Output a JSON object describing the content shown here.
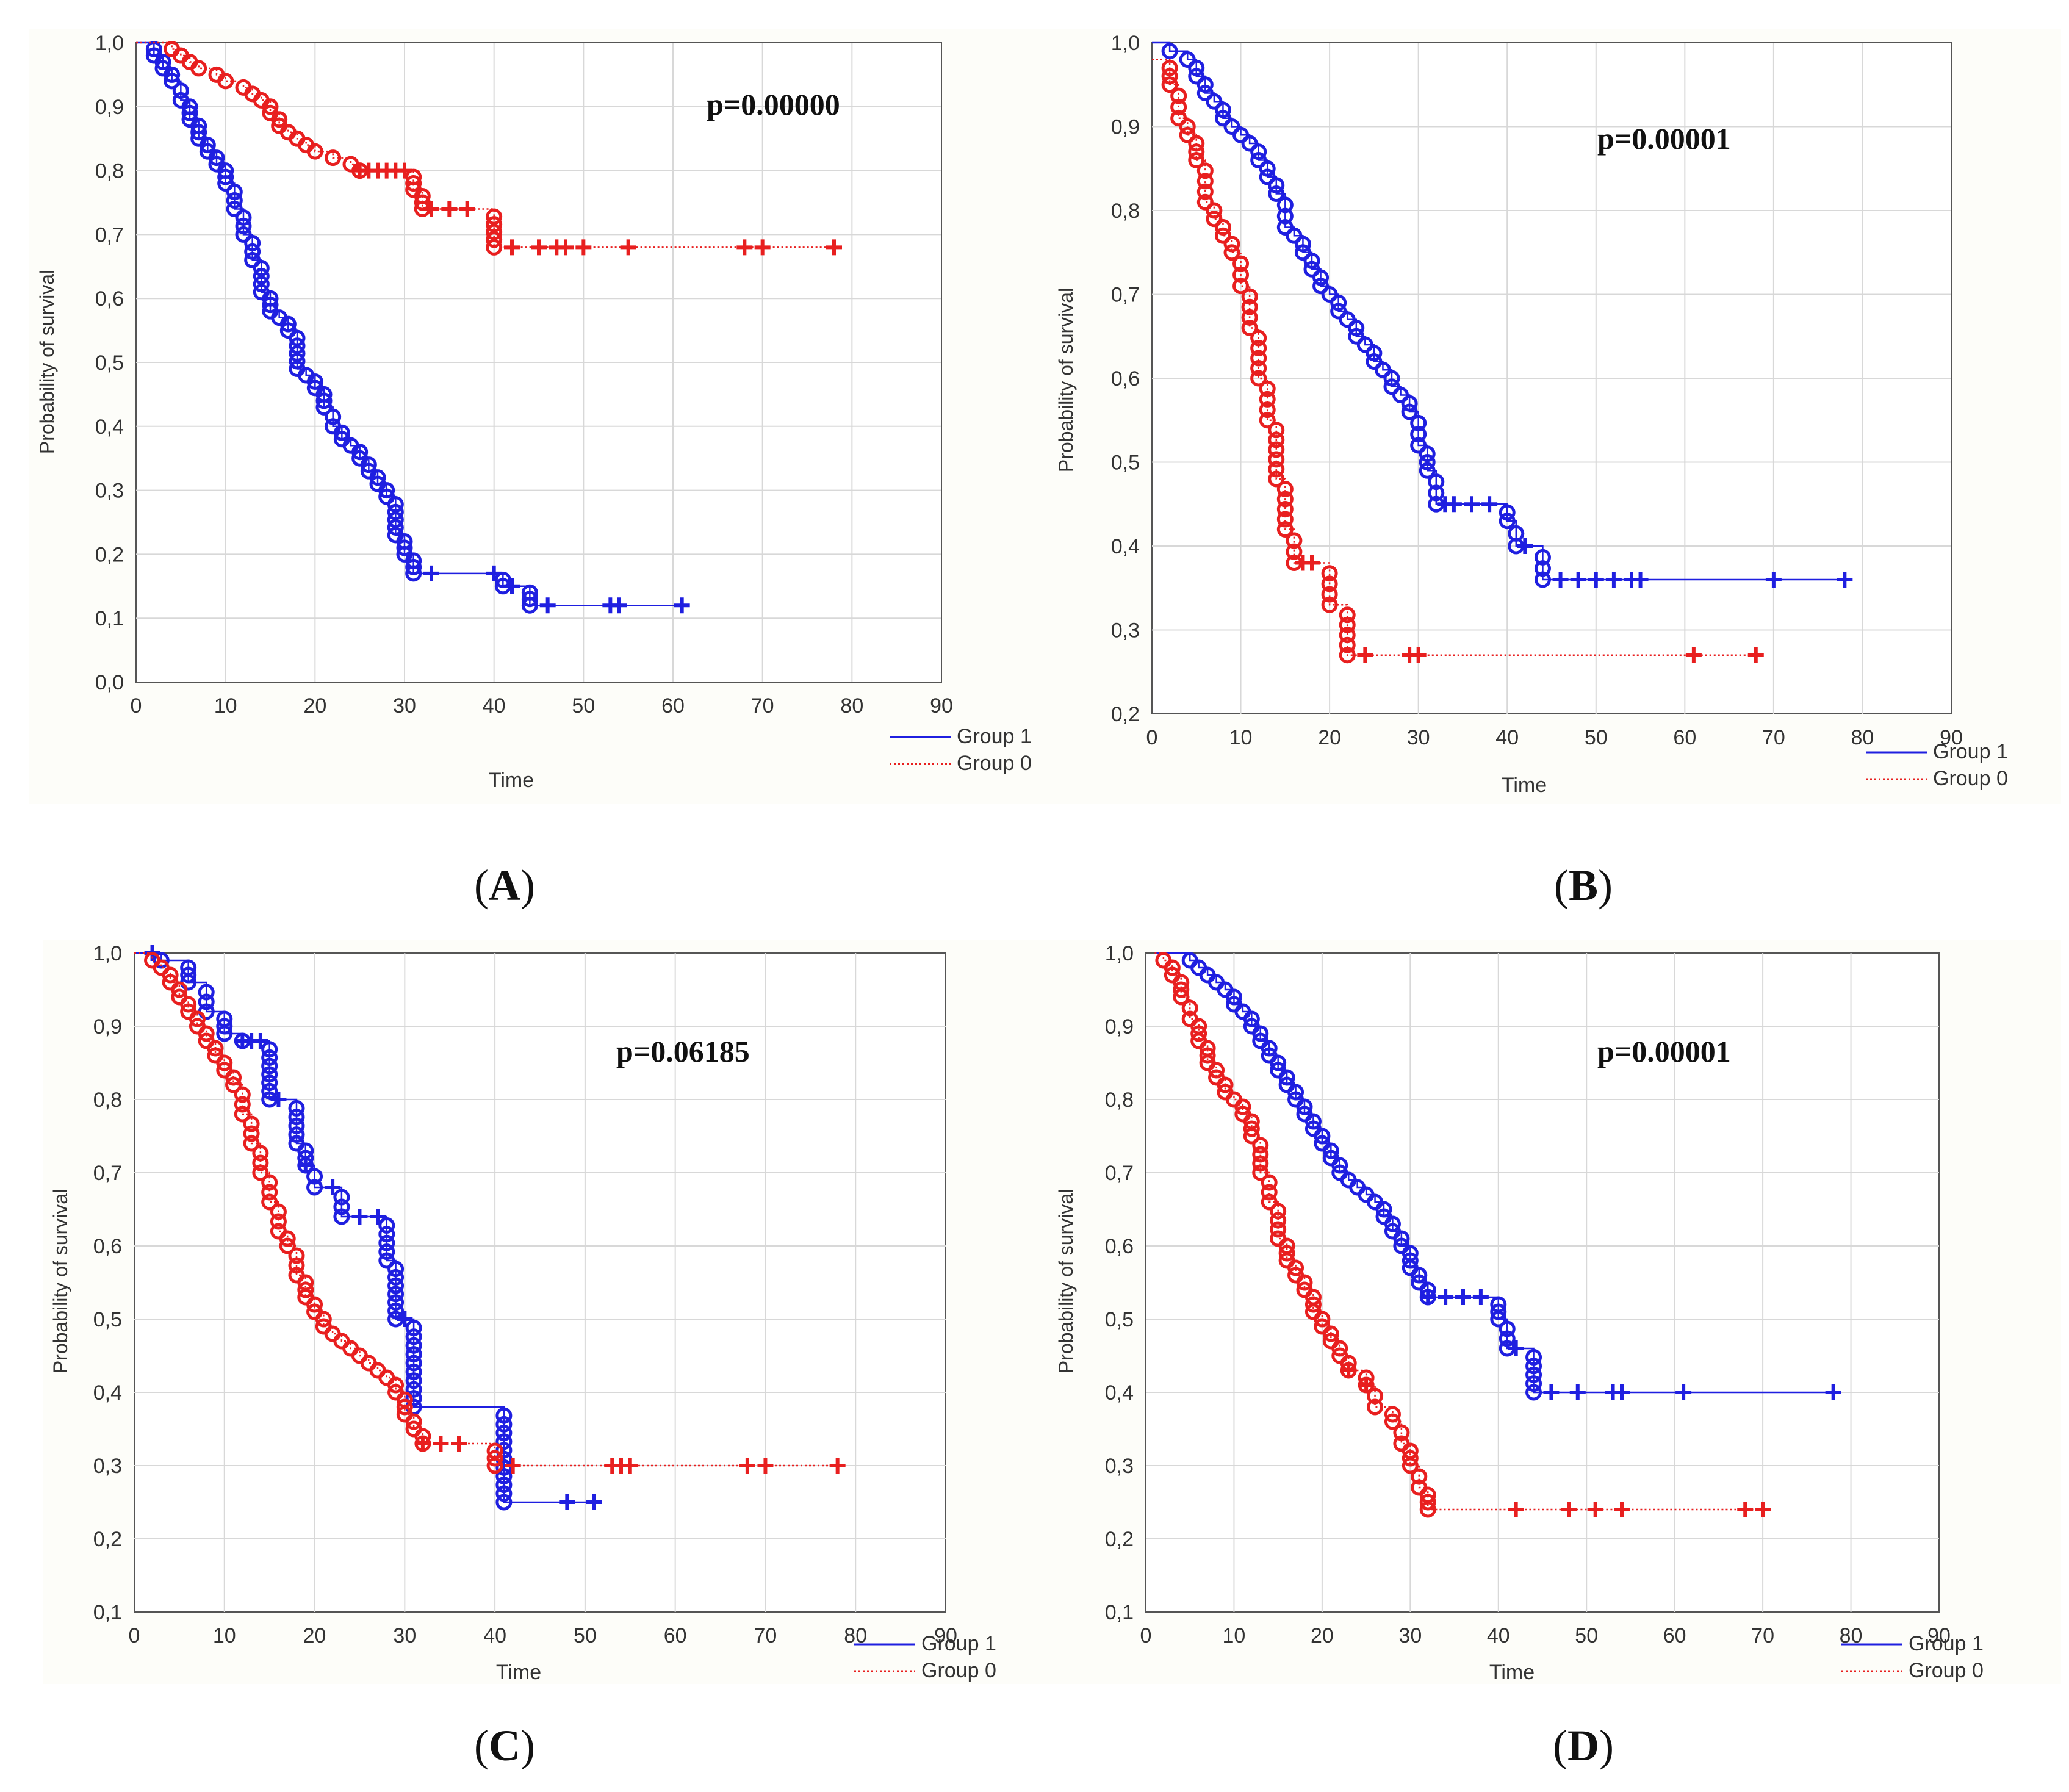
{
  "colors": {
    "group1": "#1f1fe0",
    "group0": "#e81f1f",
    "axis": "#222222",
    "grid": "#d8d8d8",
    "frame": "#555555"
  },
  "chart_data": [
    {
      "type": "line",
      "panel_label": "A",
      "title": "",
      "p_value_text": "p=0.00000",
      "xlabel": "Time",
      "ylabel": "Probability of survival",
      "xlim": [
        0,
        90
      ],
      "ylim": [
        0.0,
        1.0
      ],
      "xticks": [
        "0",
        "10",
        "20",
        "30",
        "40",
        "50",
        "60",
        "70",
        "80",
        "90"
      ],
      "yticks": [
        "0,0",
        "0,1",
        "0,2",
        "0,3",
        "0,4",
        "0,5",
        "0,6",
        "0,7",
        "0,8",
        "0,9",
        "1,0"
      ],
      "legend": [
        "Group 1",
        "Group 0"
      ],
      "series": [
        {
          "name": "Group 1",
          "style": "solid",
          "x": [
            0,
            2,
            3,
            4,
            5,
            6,
            7,
            8,
            9,
            10,
            11,
            12,
            13,
            14,
            15,
            16,
            17,
            18,
            19,
            20,
            21,
            22,
            23,
            24,
            25,
            26,
            27,
            28,
            29,
            30,
            31,
            33,
            40,
            41,
            42,
            44,
            46,
            53,
            54,
            61
          ],
          "values": [
            1.0,
            0.98,
            0.96,
            0.94,
            0.91,
            0.88,
            0.85,
            0.83,
            0.81,
            0.78,
            0.74,
            0.7,
            0.66,
            0.61,
            0.58,
            0.57,
            0.55,
            0.49,
            0.48,
            0.46,
            0.43,
            0.4,
            0.38,
            0.37,
            0.35,
            0.33,
            0.31,
            0.29,
            0.23,
            0.2,
            0.17,
            0.17,
            0.17,
            0.15,
            0.15,
            0.12,
            0.12,
            0.12,
            0.12,
            0.12
          ],
          "censored": [
            33,
            40,
            42,
            46,
            53,
            54,
            61
          ]
        },
        {
          "name": "Group 0",
          "style": "dotted",
          "x": [
            0,
            2,
            3,
            4,
            5,
            6,
            7,
            8,
            9,
            10,
            11,
            12,
            13,
            14,
            15,
            16,
            17,
            18,
            19,
            20,
            22,
            24,
            25,
            26,
            27,
            28,
            29,
            30,
            31,
            32,
            33,
            35,
            37,
            40,
            42,
            45,
            47,
            48,
            50,
            55,
            68,
            70,
            78
          ],
          "values": [
            1.0,
            1.0,
            1.0,
            0.99,
            0.98,
            0.97,
            0.96,
            0.96,
            0.95,
            0.94,
            0.94,
            0.93,
            0.92,
            0.91,
            0.89,
            0.87,
            0.86,
            0.85,
            0.84,
            0.83,
            0.82,
            0.81,
            0.8,
            0.8,
            0.8,
            0.8,
            0.8,
            0.8,
            0.77,
            0.74,
            0.74,
            0.74,
            0.74,
            0.68,
            0.68,
            0.68,
            0.68,
            0.68,
            0.68,
            0.68,
            0.68,
            0.68,
            0.68
          ],
          "censored": [
            25,
            26,
            27,
            28,
            29,
            30,
            33,
            35,
            37,
            42,
            45,
            47,
            48,
            50,
            55,
            68,
            70,
            78
          ]
        }
      ]
    },
    {
      "type": "line",
      "panel_label": "B",
      "title": "",
      "p_value_text": "p=0.00001",
      "xlabel": "Time",
      "ylabel": "Probability of survival",
      "xlim": [
        0,
        90
      ],
      "ylim": [
        0.2,
        1.0
      ],
      "xticks": [
        "0",
        "10",
        "20",
        "30",
        "40",
        "50",
        "60",
        "70",
        "80",
        "90"
      ],
      "yticks": [
        "0,2",
        "0,3",
        "0,4",
        "0,5",
        "0,6",
        "0,7",
        "0,8",
        "0,9",
        "1,0"
      ],
      "legend": [
        "Group 1",
        "Group 0"
      ],
      "series": [
        {
          "name": "Group 1",
          "style": "solid",
          "x": [
            0,
            2,
            4,
            5,
            6,
            7,
            8,
            9,
            10,
            11,
            12,
            13,
            14,
            15,
            16,
            17,
            18,
            19,
            20,
            21,
            22,
            23,
            24,
            25,
            26,
            27,
            28,
            29,
            30,
            31,
            32,
            33,
            36,
            38,
            40,
            41,
            42,
            44,
            46,
            48,
            50,
            52,
            54,
            55,
            70,
            78
          ],
          "values": [
            1.0,
            0.99,
            0.98,
            0.96,
            0.94,
            0.93,
            0.91,
            0.9,
            0.89,
            0.88,
            0.86,
            0.84,
            0.82,
            0.78,
            0.77,
            0.75,
            0.73,
            0.71,
            0.7,
            0.68,
            0.67,
            0.65,
            0.64,
            0.62,
            0.61,
            0.59,
            0.58,
            0.56,
            0.52,
            0.49,
            0.45,
            0.45,
            0.45,
            0.45,
            0.43,
            0.4,
            0.4,
            0.36,
            0.36,
            0.36,
            0.36,
            0.36,
            0.36,
            0.36,
            0.36,
            0.36
          ],
          "censored": [
            33,
            34,
            36,
            38,
            42,
            46,
            48,
            50,
            52,
            54,
            55,
            70,
            78
          ]
        },
        {
          "name": "Group 0",
          "style": "dotted",
          "x": [
            0,
            1,
            2,
            3,
            4,
            5,
            6,
            7,
            8,
            9,
            10,
            11,
            12,
            13,
            14,
            15,
            16,
            18,
            20,
            22,
            24,
            29,
            30,
            61,
            68
          ],
          "values": [
            0.98,
            0.98,
            0.95,
            0.91,
            0.89,
            0.86,
            0.81,
            0.79,
            0.77,
            0.75,
            0.71,
            0.66,
            0.6,
            0.55,
            0.48,
            0.42,
            0.38,
            0.38,
            0.33,
            0.27,
            0.27,
            0.27,
            0.27,
            0.27,
            0.27
          ],
          "censored": [
            17,
            18,
            24,
            29,
            30,
            61,
            68
          ]
        }
      ]
    },
    {
      "type": "line",
      "panel_label": "C",
      "title": "",
      "p_value_text": "p=0.06185",
      "xlabel": "Time",
      "ylabel": "Probability of survival",
      "xlim": [
        0,
        90
      ],
      "ylim": [
        0.1,
        1.0
      ],
      "xticks": [
        "0",
        "10",
        "20",
        "30",
        "40",
        "50",
        "60",
        "70",
        "80",
        "90"
      ],
      "yticks": [
        "0,1",
        "0,2",
        "0,3",
        "0,4",
        "0,5",
        "0,6",
        "0,7",
        "0,8",
        "0,9",
        "1,0"
      ],
      "legend": [
        "Group 1",
        "Group 0"
      ],
      "series": [
        {
          "name": "Group 1",
          "style": "solid",
          "x": [
            0,
            3,
            6,
            8,
            10,
            12,
            13,
            14,
            15,
            18,
            19,
            20,
            22,
            23,
            25,
            27,
            28,
            29,
            30,
            31,
            41,
            48,
            51
          ],
          "values": [
            1.0,
            0.99,
            0.96,
            0.92,
            0.89,
            0.88,
            0.88,
            0.88,
            0.8,
            0.74,
            0.71,
            0.68,
            0.68,
            0.64,
            0.64,
            0.64,
            0.58,
            0.5,
            0.5,
            0.38,
            0.25,
            0.25,
            0.25
          ],
          "censored": [
            2,
            12,
            13,
            14,
            16,
            19,
            22,
            25,
            27,
            30,
            48,
            51
          ]
        },
        {
          "name": "Group 0",
          "style": "dotted",
          "x": [
            0,
            2,
            3,
            4,
            5,
            6,
            7,
            8,
            9,
            10,
            11,
            12,
            13,
            14,
            15,
            16,
            17,
            18,
            19,
            20,
            21,
            22,
            23,
            24,
            25,
            26,
            27,
            28,
            29,
            30,
            31,
            32,
            34,
            36,
            40,
            42,
            53,
            54,
            55,
            68,
            70,
            78
          ],
          "values": [
            1.0,
            0.99,
            0.98,
            0.96,
            0.94,
            0.92,
            0.9,
            0.88,
            0.86,
            0.84,
            0.82,
            0.78,
            0.74,
            0.7,
            0.66,
            0.62,
            0.6,
            0.56,
            0.53,
            0.51,
            0.49,
            0.48,
            0.47,
            0.46,
            0.45,
            0.44,
            0.43,
            0.42,
            0.4,
            0.37,
            0.35,
            0.33,
            0.33,
            0.33,
            0.3,
            0.3,
            0.3,
            0.3,
            0.3,
            0.3,
            0.3,
            0.3
          ],
          "censored": [
            32,
            34,
            36,
            42,
            53,
            54,
            55,
            68,
            70,
            78
          ]
        }
      ]
    },
    {
      "type": "line",
      "panel_label": "D",
      "title": "",
      "p_value_text": "p=0.00001",
      "xlabel": "Time",
      "ylabel": "Probability of survival",
      "xlim": [
        0,
        90
      ],
      "ylim": [
        0.1,
        1.0
      ],
      "xticks": [
        "0",
        "10",
        "20",
        "30",
        "40",
        "50",
        "60",
        "70",
        "80",
        "90"
      ],
      "yticks": [
        "0,1",
        "0,2",
        "0,3",
        "0,4",
        "0,5",
        "0,6",
        "0,7",
        "0,8",
        "0,9",
        "1,0"
      ],
      "legend": [
        "Group 1",
        "Group 0"
      ],
      "series": [
        {
          "name": "Group 1",
          "style": "solid",
          "x": [
            1,
            3,
            5,
            6,
            7,
            8,
            9,
            10,
            11,
            12,
            13,
            14,
            15,
            16,
            17,
            18,
            19,
            20,
            21,
            22,
            23,
            24,
            25,
            26,
            27,
            28,
            29,
            30,
            31,
            32,
            34,
            36,
            38,
            40,
            41,
            42,
            44,
            46,
            49,
            53,
            54,
            61,
            78
          ],
          "values": [
            1.0,
            1.0,
            0.99,
            0.98,
            0.97,
            0.96,
            0.95,
            0.93,
            0.92,
            0.9,
            0.88,
            0.86,
            0.84,
            0.82,
            0.8,
            0.78,
            0.76,
            0.74,
            0.72,
            0.7,
            0.69,
            0.68,
            0.67,
            0.66,
            0.64,
            0.62,
            0.6,
            0.57,
            0.55,
            0.53,
            0.53,
            0.53,
            0.53,
            0.5,
            0.46,
            0.46,
            0.4,
            0.4,
            0.4,
            0.4,
            0.4,
            0.4,
            0.4
          ],
          "censored": [
            32,
            34,
            36,
            38,
            42,
            46,
            49,
            53,
            54,
            61,
            78
          ]
        },
        {
          "name": "Group 0",
          "style": "dotted",
          "x": [
            1,
            2,
            3,
            4,
            5,
            6,
            7,
            8,
            9,
            10,
            11,
            12,
            13,
            14,
            15,
            16,
            17,
            18,
            19,
            20,
            21,
            22,
            23,
            24,
            25,
            26,
            27,
            28,
            29,
            30,
            31,
            32,
            42,
            48,
            51,
            54,
            68,
            70
          ],
          "values": [
            1.0,
            0.99,
            0.97,
            0.94,
            0.91,
            0.88,
            0.85,
            0.83,
            0.81,
            0.8,
            0.78,
            0.75,
            0.7,
            0.66,
            0.61,
            0.58,
            0.56,
            0.54,
            0.51,
            0.49,
            0.47,
            0.45,
            0.43,
            0.43,
            0.41,
            0.38,
            0.38,
            0.36,
            0.33,
            0.3,
            0.27,
            0.24,
            0.24,
            0.24,
            0.24,
            0.24,
            0.24,
            0.24
          ],
          "censored": [
            23,
            25,
            42,
            48,
            51,
            54,
            68,
            70
          ]
        }
      ]
    }
  ]
}
